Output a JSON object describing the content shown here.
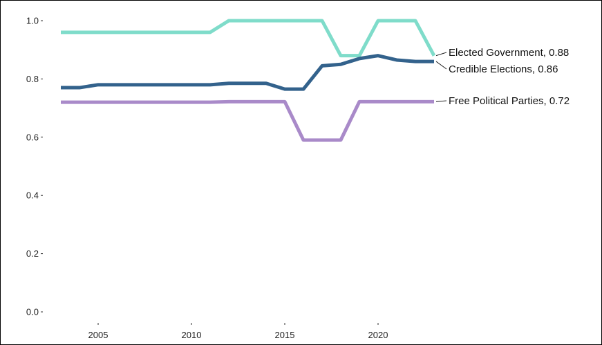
{
  "chart_data": {
    "type": "line",
    "title": "",
    "xlabel": "",
    "ylabel": "",
    "xlim": [
      2003,
      2032.5
    ],
    "ylim": [
      0,
      1.02
    ],
    "grid": false,
    "legend": "inline labels at line ends",
    "x_ticks": [
      2005,
      2010,
      2015,
      2020
    ],
    "x_tick_labels": [
      "2005",
      "2010",
      "2015",
      "2020"
    ],
    "y_ticks": [
      0.0,
      0.2,
      0.4,
      0.6,
      0.8,
      1.0
    ],
    "y_tick_labels": [
      "0.0",
      "0.2",
      "0.4",
      "0.6",
      "0.8",
      "1.0"
    ],
    "x": [
      2003,
      2004,
      2005,
      2006,
      2007,
      2008,
      2009,
      2010,
      2011,
      2012,
      2013,
      2014,
      2015,
      2016,
      2017,
      2018,
      2019,
      2020,
      2021,
      2022,
      2023
    ],
    "series": [
      {
        "name": "Elected Government",
        "end_label": "Elected Government, 0.88",
        "color": "#7fdcca",
        "values": [
          0.96,
          0.96,
          0.96,
          0.96,
          0.96,
          0.96,
          0.96,
          0.96,
          0.96,
          1.0,
          1.0,
          1.0,
          1.0,
          1.0,
          1.0,
          0.88,
          0.88,
          1.0,
          1.0,
          1.0,
          0.88
        ]
      },
      {
        "name": "Credible Elections",
        "end_label": "Credible Elections, 0.86",
        "color": "#33628c",
        "values": [
          0.77,
          0.77,
          0.78,
          0.78,
          0.78,
          0.78,
          0.78,
          0.78,
          0.78,
          0.785,
          0.785,
          0.785,
          0.765,
          0.765,
          0.845,
          0.85,
          0.87,
          0.88,
          0.865,
          0.86,
          0.86
        ]
      },
      {
        "name": "Free Political Parties",
        "end_label": "Free Political Parties, 0.72",
        "color": "#a98ac9",
        "values": [
          0.72,
          0.72,
          0.72,
          0.72,
          0.72,
          0.72,
          0.72,
          0.72,
          0.72,
          0.722,
          0.722,
          0.722,
          0.722,
          0.59,
          0.59,
          0.59,
          0.722,
          0.722,
          0.722,
          0.722,
          0.722
        ]
      }
    ]
  }
}
